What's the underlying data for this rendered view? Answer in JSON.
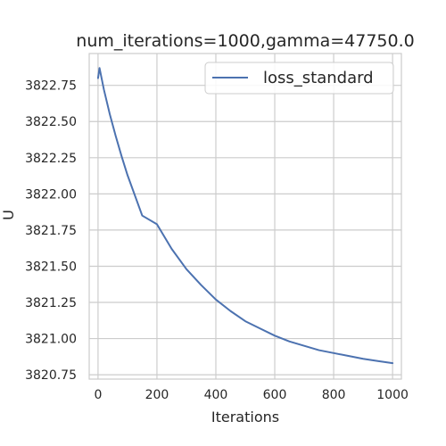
{
  "chart_data": {
    "type": "line",
    "title": "num_iterations=1000,gamma=47750.0",
    "xlabel": "Iterations",
    "ylabel": "U",
    "xlim": [
      -30,
      1030
    ],
    "ylim": [
      3820.72,
      3822.97
    ],
    "xticks": [
      0,
      200,
      400,
      600,
      800,
      1000
    ],
    "xtick_labels": [
      "0",
      "200",
      "400",
      "600",
      "800",
      "1000"
    ],
    "yticks": [
      3820.75,
      3821.0,
      3821.25,
      3821.5,
      3821.75,
      3822.0,
      3822.25,
      3822.5,
      3822.75
    ],
    "ytick_labels": [
      "3820.75",
      "3821.00",
      "3821.25",
      "3821.50",
      "3821.75",
      "3822.00",
      "3822.25",
      "3822.50",
      "3822.75"
    ],
    "grid": true,
    "legend_position": "top-right",
    "series": [
      {
        "name": "loss_standard",
        "color": "#4c72b0",
        "x": [
          0,
          5,
          10,
          20,
          40,
          60,
          80,
          100,
          150,
          200,
          250,
          300,
          350,
          400,
          450,
          500,
          550,
          600,
          650,
          700,
          750,
          800,
          850,
          900,
          950,
          1000
        ],
        "y": [
          3822.8,
          3822.87,
          3822.82,
          3822.72,
          3822.55,
          3822.4,
          3822.26,
          3822.13,
          3821.85,
          3821.79,
          3821.62,
          3821.48,
          3821.37,
          3821.27,
          3821.19,
          3821.12,
          3821.07,
          3821.02,
          3820.98,
          3820.95,
          3820.92,
          3820.9,
          3820.88,
          3820.86,
          3820.845,
          3820.83
        ]
      }
    ]
  }
}
